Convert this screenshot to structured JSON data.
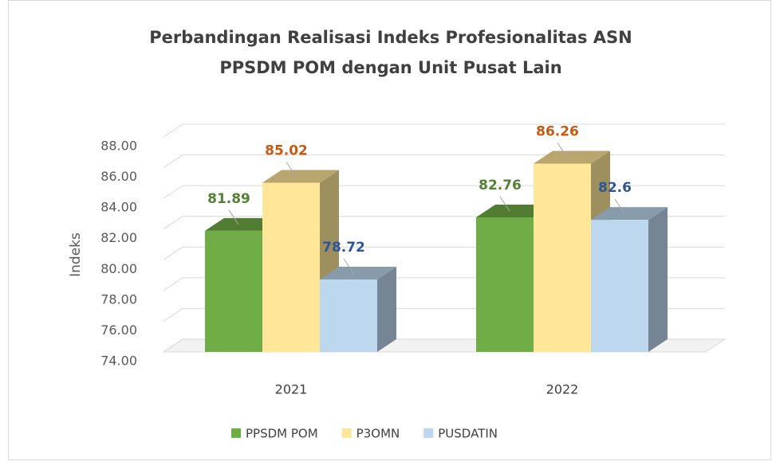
{
  "chart_data": {
    "type": "bar3d",
    "title": "Perbandingan Realisasi Indeks Profesionalitas ASN",
    "subtitle": "PPSDM POM dengan Unit Pusat Lain",
    "y_label": "Indeks",
    "categories": [
      "2021",
      "2022"
    ],
    "series": [
      {
        "name": "PPSDM POM",
        "color": "#70ad47",
        "label_color": "#548235",
        "values": [
          81.89,
          82.76
        ]
      },
      {
        "name": "P3OMN",
        "color": "#ffe699",
        "label_color": "#c55a11",
        "values": [
          85.02,
          86.26
        ]
      },
      {
        "name": "PUSDATIN",
        "color": "#bdd7ee",
        "label_color": "#2f5597",
        "values": [
          78.72,
          82.6
        ]
      }
    ],
    "ylim": [
      74,
      88
    ],
    "yticks": [
      {
        "value": 74,
        "label": "74.00"
      },
      {
        "value": 76,
        "label": "76.00"
      },
      {
        "value": 78,
        "label": "78.00"
      },
      {
        "value": 80,
        "label": "80.00"
      },
      {
        "value": 82,
        "label": "82.00"
      },
      {
        "value": 84,
        "label": "84.00"
      },
      {
        "value": 86,
        "label": "86.00"
      },
      {
        "value": 88,
        "label": "88.00"
      }
    ],
    "grid": true,
    "legend": "bottom"
  }
}
